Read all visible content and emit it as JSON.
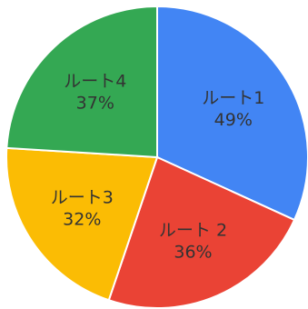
{
  "chart_data": {
    "type": "pie",
    "title": "",
    "start_angle_deg": 0,
    "direction": "clockwise",
    "slices": [
      {
        "label": "ルート1",
        "value": 49,
        "display": "49%",
        "color": "#4285F4"
      },
      {
        "label": "ルート 2",
        "value": 36,
        "display": "36%",
        "color": "#EA4335"
      },
      {
        "label": "ルート3",
        "value": 32,
        "display": "32%",
        "color": "#FBBC04"
      },
      {
        "label": "ルート4",
        "value": 37,
        "display": "37%",
        "color": "#34A853"
      }
    ]
  }
}
